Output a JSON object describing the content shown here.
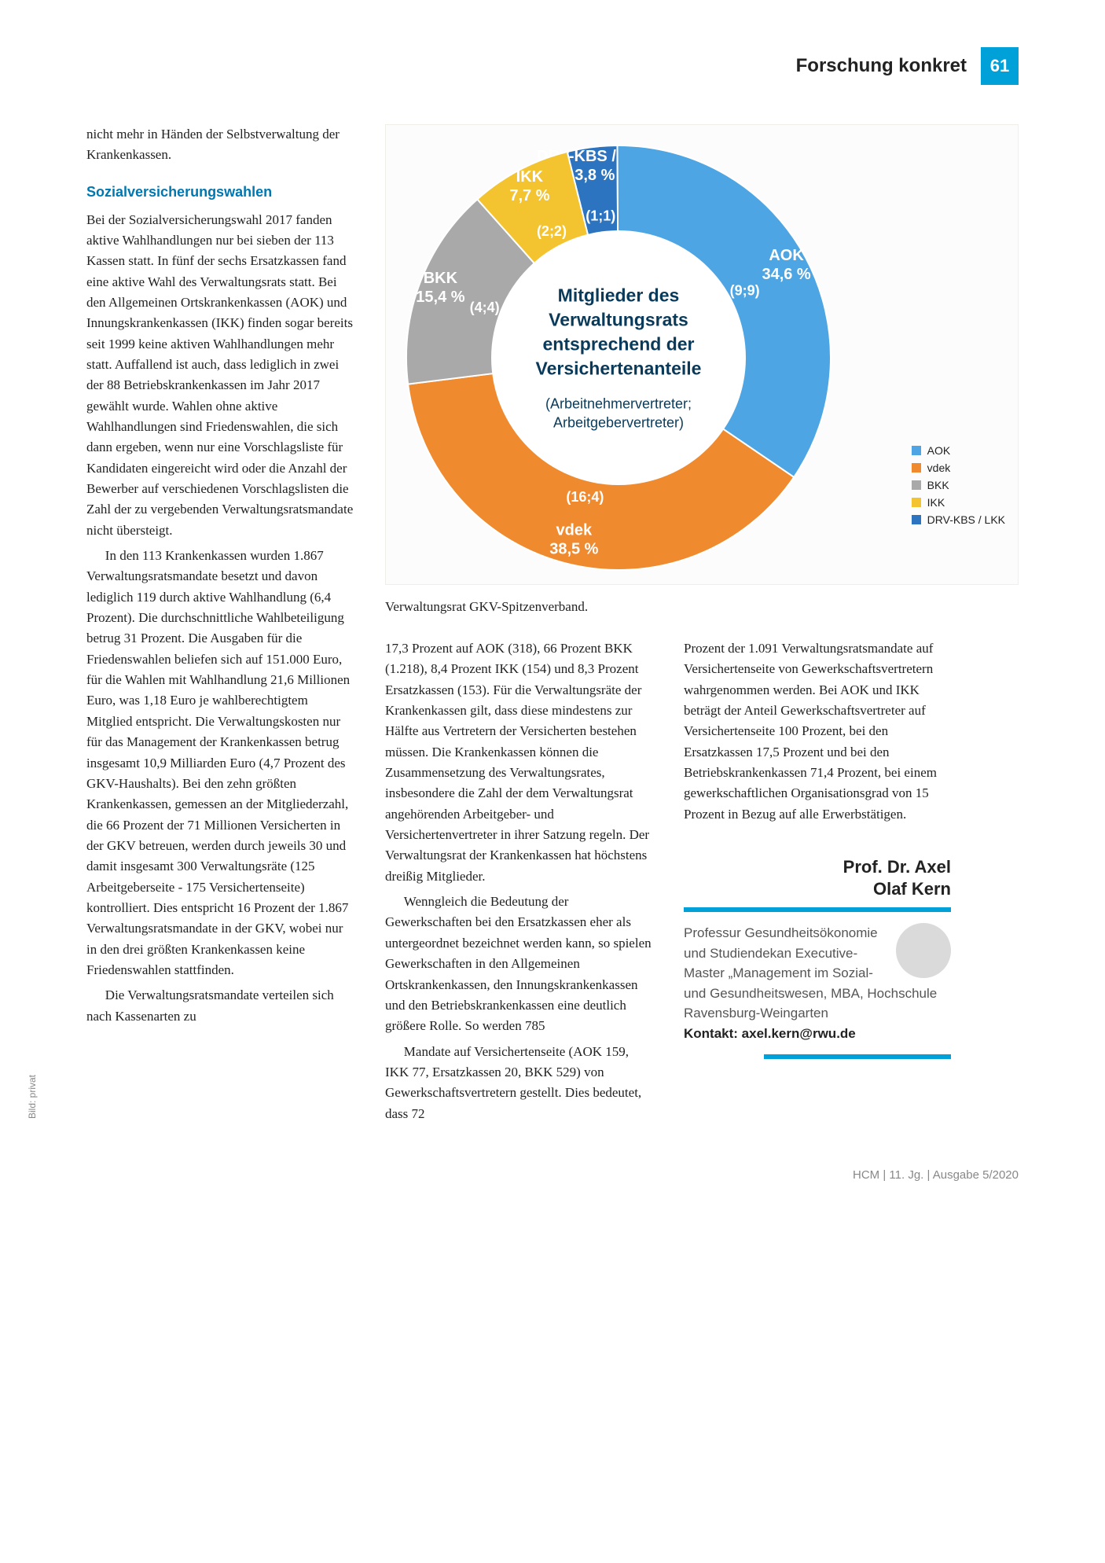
{
  "header": {
    "section_title": "Forschung konkret",
    "page_number": "61"
  },
  "text": {
    "lead_in": "nicht mehr in Händen der Selbstverwaltung der Krankenkassen.",
    "heading1": "Sozialversicherungswahlen",
    "col1_p1": "Bei der Sozialversicherungswahl 2017 fanden aktive Wahlhandlungen nur bei sieben der 113 Kassen statt. In fünf der sechs Ersatzkassen fand eine aktive Wahl des Verwaltungsrats statt. Bei den Allgemeinen Ortskrankenkassen (AOK) und Innungskrankenkassen (IKK) finden sogar bereits seit 1999 keine aktiven Wahlhandlungen mehr statt. Auffallend ist auch, dass lediglich in zwei der 88 Betriebskrankenkassen im Jahr 2017 gewählt wurde. Wahlen ohne aktive Wahlhandlungen sind Friedenswahlen, die sich dann ergeben, wenn nur eine Vorschlagsliste für Kandidaten eingereicht wird oder die Anzahl der Bewerber auf verschiedenen Vorschlagslisten die Zahl der zu vergebenden Verwaltungsratsmandate nicht übersteigt.",
    "col1_p2": "In den 113 Krankenkassen wurden 1.867 Verwaltungsratsmandate besetzt und davon lediglich 119 durch aktive Wahlhandlung (6,4 Prozent). Die durchschnittliche Wahlbeteiligung betrug 31 Prozent. Die Ausgaben für die Friedenswahlen beliefen sich auf 151.000 Euro, für die Wahlen mit Wahlhandlung 21,6 Millionen Euro, was 1,18 Euro je wahlberechtigtem Mitglied entspricht. Die Verwaltungskosten nur für das Management der Krankenkassen betrug insgesamt 10,9 Milliarden Euro (4,7 Prozent des GKV-Haushalts). Bei den zehn größten Krankenkassen, gemessen an der Mitgliederzahl, die 66 Prozent der 71 Millionen Versicherten in der GKV betreuen, werden durch jeweils 30 und damit insgesamt 300 Verwaltungsräte (125 Arbeitgeberseite - 175 Versichertenseite) kontrolliert. Dies entspricht 16 Prozent der 1.867 Verwaltungsratsmandate in der GKV, wobei nur in den drei größten Krankenkassen keine Friedenswahlen stattfinden.",
    "col1_p3": "Die Verwaltungsratsmandate verteilen sich nach Kassenarten zu",
    "col2_p1": "17,3 Prozent auf AOK (318), 66 Prozent BKK (1.218), 8,4 Prozent IKK (154) und 8,3 Prozent Ersatzkassen (153). Für die Verwaltungsräte der Krankenkassen gilt, dass diese mindestens zur Hälfte aus Vertretern der Versicherten bestehen müssen. Die Krankenkassen können die Zusammensetzung des Verwaltungsrates, insbesondere die Zahl der dem Verwaltungsrat angehörenden Arbeitgeber- und Versichertenvertreter in ihrer Satzung regeln. Der Verwaltungsrat der Krankenkassen hat höchstens dreißig Mitglieder.",
    "col2_p2": "Wenngleich die Bedeutung der Gewerkschaften bei den Ersatzkassen eher als untergeordnet bezeichnet werden kann, so spielen Gewerkschaften in den Allgemeinen Ortskrankenkassen, den Innungskrankenkassen und den Betriebskrankenkassen eine deutlich größere Rolle. So werden 785",
    "col2_p3": "Mandate auf Versichertenseite (AOK 159, IKK 77,  Ersatzkassen 20, BKK 529) von Gewerkschaftsvertretern gestellt. Dies bedeutet, dass 72",
    "col3_p1": "Prozent der 1.091 Verwaltungsratsmandate auf Versichertenseite von Gewerkschaftsvertretern wahrgenommen werden. Bei AOK und IKK beträgt der Anteil Gewerkschaftsvertreter auf Versichertenseite 100 Prozent, bei den Ersatzkassen 17,5 Prozent und bei den Betriebskrankenkassen 71,4 Prozent, bei einem gewerkschaftlichen Organisationsgrad von 15 Prozent in Bezug auf alle Erwerbstätigen."
  },
  "chart": {
    "type": "donut",
    "caption": "Verwaltungsrat GKV-Spitzenverband.",
    "center_title": "Mitglieder des Verwaltungsrats entsprechend der Versichertenanteile",
    "center_sub": "(Arbeitnehmervertreter; Arbeitgebervertreter)",
    "ring_thickness": 110,
    "radius_outer": 270,
    "background_color": "#fcfcfc",
    "slices": [
      {
        "key": "drvkbs",
        "name": "DRV-KBS / LKK",
        "pct_label": "3,8 %",
        "value": 3.8,
        "ratio": "(1;1)",
        "color": "#2d74c0"
      },
      {
        "key": "aok",
        "name": "AOK",
        "pct_label": "34,6 %",
        "value": 34.6,
        "ratio": "(9;9)",
        "color": "#4da5e3"
      },
      {
        "key": "vdek",
        "name": "vdek",
        "pct_label": "38,5 %",
        "value": 38.5,
        "ratio": "(16;4)",
        "color": "#f08a2e"
      },
      {
        "key": "bkk",
        "name": "BKK",
        "pct_label": "15,4 %",
        "value": 15.4,
        "ratio": "(4;4)",
        "color": "#a9a9a9"
      },
      {
        "key": "ikk",
        "name": "IKK",
        "pct_label": "7,7 %",
        "value": 7.7,
        "ratio": "(2;2)",
        "color": "#f4c430"
      }
    ],
    "start_angle_deg": -14,
    "legend": [
      {
        "label": "AOK",
        "color": "#4da5e3"
      },
      {
        "label": "vdek",
        "color": "#f08a2e"
      },
      {
        "label": "BKK",
        "color": "#a9a9a9"
      },
      {
        "label": "IKK",
        "color": "#f4c430"
      },
      {
        "label": "DRV-KBS / LKK",
        "color": "#2d74c0"
      }
    ]
  },
  "author": {
    "name_line1": "Prof. Dr. Axel",
    "name_line2": "Olaf Kern",
    "bio": "Professur Gesundheitsökonomie und Studiendekan Executive-Master „Management im Sozial- und Gesundheitswesen, MBA, Hochschule Ravensburg-Weingarten",
    "contact_label": "Kontakt: ",
    "contact": "axel.kern@rwu.de"
  },
  "photo_credit": "Bild: privat",
  "footer": "HCM  |  11. Jg.  |  Ausgabe 5/2020"
}
